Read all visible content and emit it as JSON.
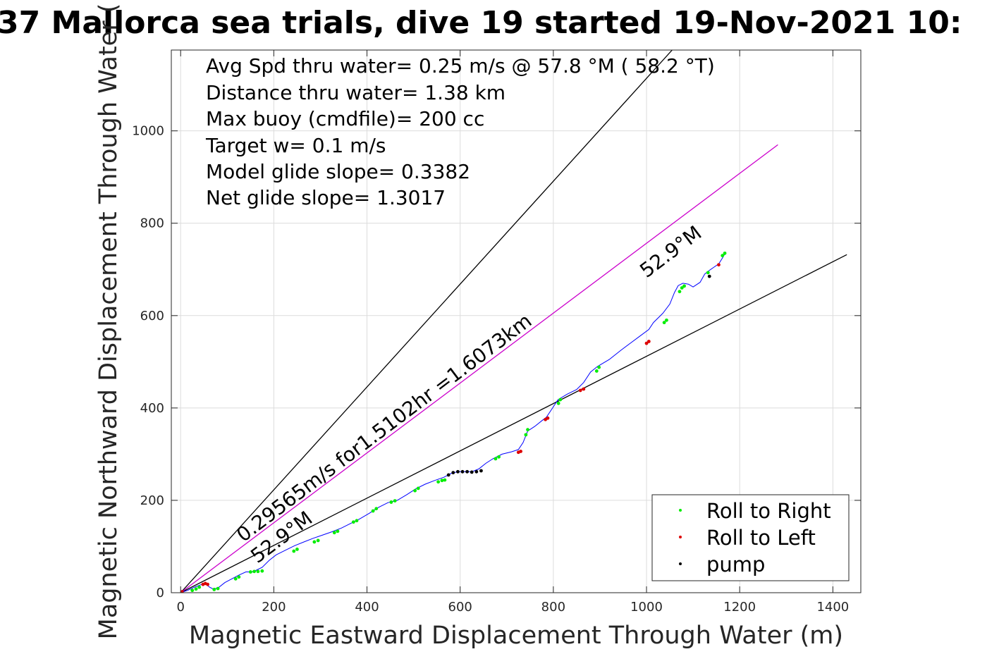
{
  "chart_data": {
    "type": "line",
    "title": "37 Mallorca sea trials, dive 19 started 19-Nov-2021 10:",
    "xlabel": "Magnetic Eastward Displacement Through Water (m)",
    "ylabel": "Magnetic Northward Displacement Through Water (",
    "xlim": [
      -20,
      1460
    ],
    "ylim": [
      0,
      1175
    ],
    "xticks": [
      0,
      200,
      400,
      600,
      800,
      1000,
      1200,
      1400
    ],
    "yticks": [
      0,
      200,
      400,
      600,
      800,
      1000
    ],
    "grid": true,
    "annotations": [
      "Avg Spd thru water=  0.25 m/s @  57.8 °M ( 58.2 °T)",
      "Distance thru water=  1.38 km",
      "Max buoy (cmdfile)= 200 cc",
      "Target w= 0.1 m/s",
      "Model glide slope= 0.3382",
      "Net glide slope= 1.3017"
    ],
    "line_labels": {
      "track_line": "0.29565m/s for1.5102hr =1.6073km",
      "heading_upper": "52.9°M",
      "heading_lower": "52.9°M"
    },
    "reference_lines": [
      {
        "x": [
          0,
          1055
        ],
        "y": [
          0,
          1175
        ],
        "color": "#000000"
      },
      {
        "x": [
          0,
          1430
        ],
        "y": [
          0,
          732
        ],
        "color": "#000000"
      },
      {
        "x": [
          0,
          1282
        ],
        "y": [
          0,
          970
        ],
        "color": "#cc00cc"
      }
    ],
    "track": {
      "color": "#0000ff",
      "x": [
        0,
        15,
        30,
        45,
        55,
        62,
        70,
        80,
        95,
        110,
        125,
        140,
        155,
        175,
        190,
        205,
        225,
        245,
        265,
        285,
        305,
        325,
        345,
        365,
        385,
        405,
        425,
        445,
        465,
        485,
        505,
        525,
        545,
        565,
        580,
        595,
        610,
        625,
        640,
        655,
        670,
        690,
        710,
        725,
        735,
        745,
        760,
        775,
        785,
        795,
        810,
        830,
        850,
        865,
        880,
        895,
        920,
        945,
        965,
        985,
        1005,
        1015,
        1025,
        1035,
        1050,
        1060,
        1068,
        1078,
        1090,
        1100,
        1115,
        1125,
        1135,
        1145,
        1155,
        1165,
        1170
      ],
      "y": [
        0,
        5,
        12,
        18,
        18,
        12,
        8,
        10,
        22,
        30,
        38,
        45,
        45,
        55,
        70,
        82,
        92,
        102,
        110,
        118,
        125,
        132,
        140,
        150,
        160,
        172,
        185,
        195,
        200,
        212,
        225,
        235,
        243,
        250,
        258,
        262,
        262,
        262,
        268,
        280,
        290,
        300,
        305,
        310,
        325,
        350,
        360,
        372,
        380,
        395,
        418,
        430,
        440,
        455,
        478,
        490,
        505,
        525,
        540,
        555,
        570,
        585,
        595,
        605,
        625,
        650,
        665,
        670,
        668,
        662,
        672,
        690,
        698,
        705,
        712,
        728,
        738
      ]
    },
    "roll_right": {
      "name": "Roll to Right",
      "color": "#00ee00",
      "x": [
        25,
        33,
        40,
        72,
        80,
        118,
        125,
        150,
        158,
        166,
        175,
        243,
        250,
        287,
        295,
        330,
        337,
        371,
        378,
        413,
        420,
        452,
        460,
        503,
        510,
        553,
        561,
        567,
        676,
        683,
        741,
        745,
        811,
        815,
        893,
        898,
        1038,
        1043,
        1071,
        1076,
        1081,
        1132,
        1163,
        1168
      ],
      "y": [
        5,
        8,
        12,
        7,
        9,
        30,
        34,
        45,
        46,
        46,
        47,
        90,
        94,
        110,
        113,
        130,
        133,
        153,
        156,
        177,
        182,
        196,
        199,
        221,
        226,
        240,
        243,
        244,
        290,
        294,
        342,
        353,
        410,
        418,
        480,
        488,
        585,
        590,
        652,
        660,
        664,
        693,
        730,
        735
      ]
    },
    "roll_left": {
      "name": "Roll to Left",
      "color": "#dd0000",
      "x": [
        3,
        48,
        53,
        58,
        725,
        730,
        783,
        788,
        858,
        865,
        1000,
        1005,
        1155
      ],
      "y": [
        2,
        18,
        20,
        18,
        304,
        306,
        375,
        378,
        438,
        441,
        540,
        544,
        710
      ]
    },
    "pump": {
      "name": "pump",
      "color": "#000000",
      "x": [
        575,
        585,
        595,
        605,
        615,
        625,
        635,
        645,
        1135
      ],
      "y": [
        255,
        260,
        262,
        262,
        262,
        261,
        262,
        264,
        685
      ]
    },
    "legend": {
      "location": "lower-right",
      "entries": [
        "Roll to Right",
        "Roll to Left",
        "pump"
      ]
    }
  }
}
